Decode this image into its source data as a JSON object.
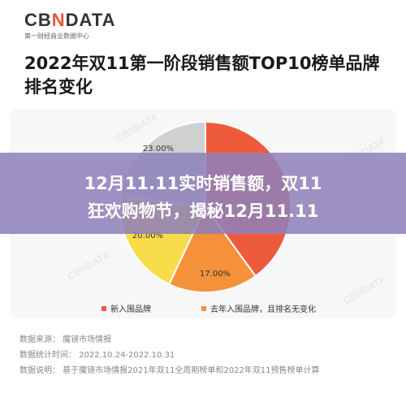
{
  "header": {
    "logo_prefix": "CB",
    "logo_mark": "N",
    "logo_suffix": "DATA",
    "logo_subtitle": "第一财经商业数据中心"
  },
  "title": "2022年双11第一阶段销售额TOP10榜单品牌排名变化",
  "banner": {
    "line1": "12月11.11实时销售额，双11",
    "line2": "狂欢购物节，揭秘12月11.11"
  },
  "chart_data": {
    "type": "pie",
    "slices": [
      {
        "label": "新入围品牌",
        "value": 40.0,
        "color": "#ee5a3c",
        "shown_label": ""
      },
      {
        "label": "去年入围品牌，且排名无变化",
        "value": 17.0,
        "color": "#f5913a",
        "shown_label": "17.00%"
      },
      {
        "label": "",
        "value": 20.0,
        "color": "#f8dc4a",
        "shown_label": "20.00%"
      },
      {
        "label": "",
        "value": 23.0,
        "color": "#cfd0d2",
        "shown_label": "23.00%"
      }
    ],
    "legend": [
      "新入围品牌",
      "去年入围品牌，且排名无变化"
    ],
    "legend_placement": "bottom"
  },
  "watermark": "CBNDATA",
  "footer": {
    "source": "数据来源：   魔镜市场情报",
    "period": "数据统计时间：  2022.10.24-2022.10.31",
    "note": "数据说明：   基于魔镜市场情报2021年双11全周期榜单和2022年双11预售榜单计算"
  }
}
